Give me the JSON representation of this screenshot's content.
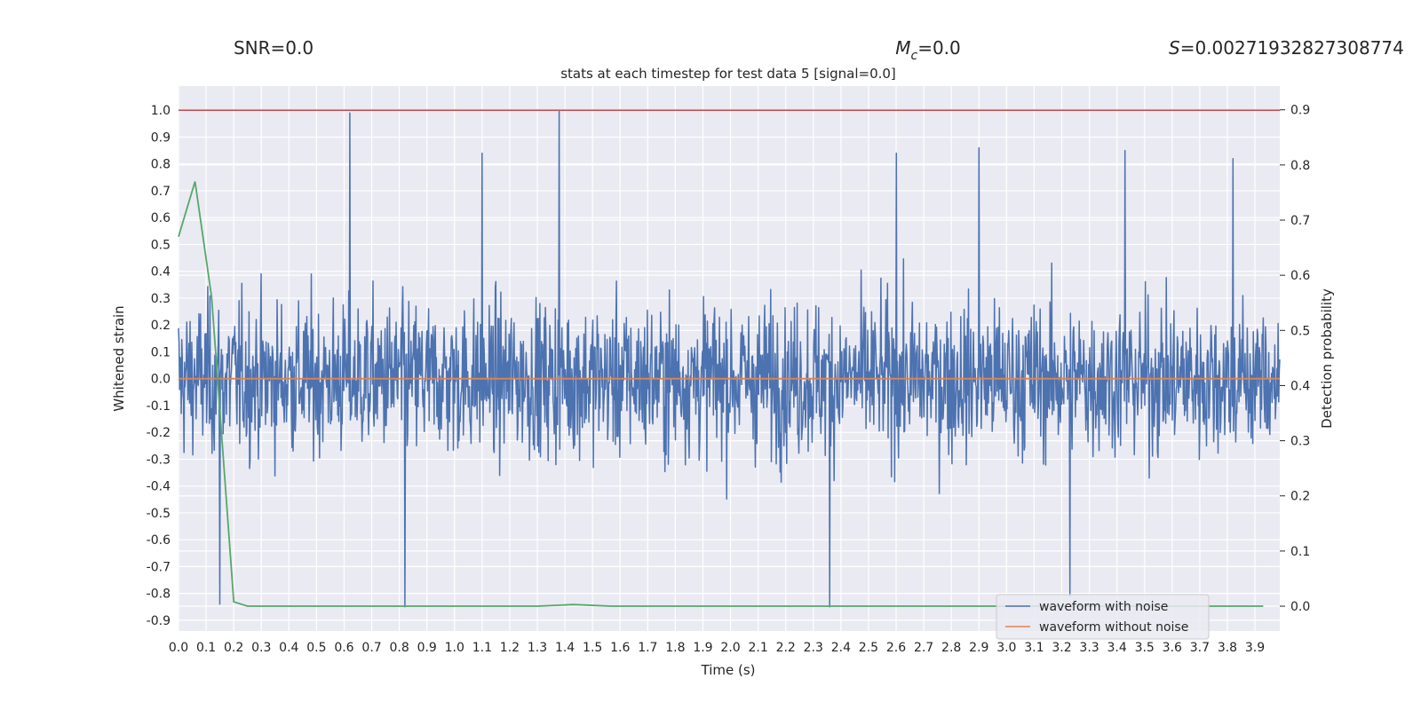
{
  "stats": {
    "snr": "SNR=0.0",
    "mc_symbol": "M",
    "mc_sub": "c",
    "mc_value": "=0.0",
    "s_symbol": "S",
    "s_value": "=0.00271932827308774"
  },
  "chart_data": {
    "type": "line",
    "title": "stats at each timestep for test data 5 [signal=0.0]",
    "xlabel": "Time (s)",
    "ylabel": "Whitened strain",
    "y2label": "Detection probability",
    "xlim": [
      0.0,
      3.99
    ],
    "ylim": [
      -0.94,
      1.09
    ],
    "y2lim": [
      -0.045,
      0.943
    ],
    "xticks": [
      "0.0",
      "0.1",
      "0.2",
      "0.3",
      "0.4",
      "0.5",
      "0.6",
      "0.7",
      "0.8",
      "0.9",
      "1.0",
      "1.1",
      "1.2",
      "1.3",
      "1.4",
      "1.5",
      "1.6",
      "1.7",
      "1.8",
      "1.9",
      "2.0",
      "2.1",
      "2.2",
      "2.3",
      "2.4",
      "2.5",
      "2.6",
      "2.7",
      "2.8",
      "2.9",
      "3.0",
      "3.1",
      "3.2",
      "3.3",
      "3.4",
      "3.5",
      "3.6",
      "3.7",
      "3.8",
      "3.9"
    ],
    "yticks": [
      "1.0",
      "0.9",
      "0.8",
      "0.7",
      "0.6",
      "0.5",
      "0.4",
      "0.3",
      "0.2",
      "0.1",
      "0.0",
      "-0.1",
      "-0.2",
      "-0.3",
      "-0.4",
      "-0.5",
      "-0.6",
      "-0.7",
      "-0.8",
      "-0.9"
    ],
    "y2ticks": [
      "0.9",
      "0.8",
      "0.7",
      "0.6",
      "0.5",
      "0.4",
      "0.3",
      "0.2",
      "0.1",
      "0.0"
    ],
    "grid": true,
    "legend_position": "lower-right",
    "series": [
      {
        "name": "waveform with noise",
        "color": "#4c72b0",
        "axis": "left",
        "samples": 2000,
        "amplitude_range": [
          -0.85,
          1.0
        ],
        "peaks": [
          [
            0.62,
            0.99
          ],
          [
            1.38,
            1.0
          ],
          [
            1.1,
            0.84
          ],
          [
            2.6,
            0.84
          ],
          [
            2.9,
            0.86
          ],
          [
            3.43,
            0.85
          ],
          [
            3.82,
            0.82
          ],
          [
            0.82,
            -0.85
          ],
          [
            2.36,
            -0.85
          ],
          [
            3.23,
            -0.81
          ],
          [
            0.15,
            -0.84
          ]
        ]
      },
      {
        "name": "waveform without noise",
        "color": "#dd8452",
        "axis": "left",
        "x": [
          0.0,
          3.99
        ],
        "y": [
          0.0,
          0.0
        ]
      },
      {
        "color": "#55a868",
        "axis": "right",
        "x": [
          0.0,
          0.06,
          0.12,
          0.2,
          0.25,
          0.5,
          1.3,
          1.43,
          1.57,
          2.0,
          3.0,
          3.93
        ],
        "y": [
          0.67,
          0.77,
          0.56,
          0.008,
          0.0,
          0.0,
          0.0,
          0.003,
          0.0,
          0.0,
          0.0,
          0.0
        ]
      },
      {
        "color": "#c44e52",
        "axis": "left",
        "x": [
          0.0,
          3.99
        ],
        "y": [
          1.0,
          1.0
        ]
      }
    ]
  }
}
